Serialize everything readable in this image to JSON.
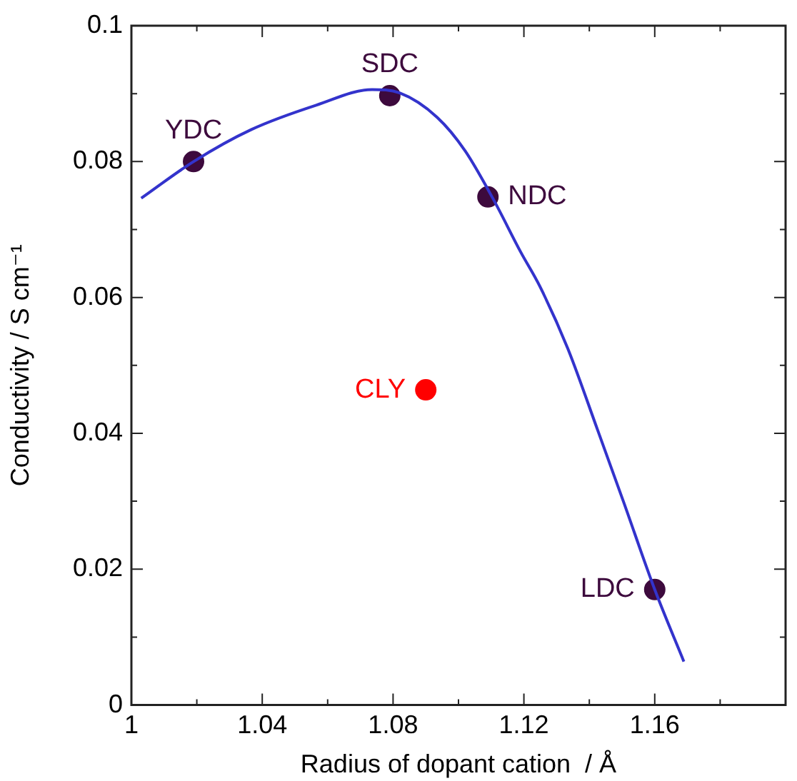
{
  "chart_data": {
    "type": "scatter",
    "xlabel": "Radius of dopant cation  / Å",
    "ylabel": "Conductivity / S cm⁻¹",
    "xlim": [
      1,
      1.2
    ],
    "ylim": [
      0,
      0.1
    ],
    "xticks": [
      1,
      {
        "value": 1.02,
        "label": null
      },
      1.04,
      {
        "value": 1.06,
        "label": null
      },
      1.08,
      {
        "value": 1.1,
        "label": null
      },
      1.12,
      {
        "value": 1.14,
        "label": null
      },
      1.16,
      {
        "value": 1.18,
        "label": null
      },
      {
        "value": 1.2,
        "label": null
      }
    ],
    "yticks": [
      0,
      {
        "value": 0.01,
        "label": null
      },
      0.02,
      {
        "value": 0.03,
        "label": null
      },
      0.04,
      {
        "value": 0.05,
        "label": null
      },
      0.06,
      {
        "value": 0.07,
        "label": null
      },
      0.08,
      {
        "value": 0.09,
        "label": null
      },
      0.1
    ],
    "grid": false,
    "legend": false,
    "marker": "circle",
    "series": [
      {
        "type": "line",
        "marker": "none",
        "color": "#3333cc",
        "x": [
          1.003,
          1.019,
          1.0366,
          1.0565,
          1.0736,
          1.082,
          1.0935,
          1.102,
          1.1106,
          1.119,
          1.1248,
          1.1334,
          1.1426,
          1.1504,
          1.16,
          1.1689
        ],
        "values": [
          0.0746,
          0.08,
          0.0847,
          0.0883,
          0.0906,
          0.0901,
          0.0865,
          0.0816,
          0.0745,
          0.0667,
          0.0617,
          0.0525,
          0.0404,
          0.03,
          0.017,
          0.0064
        ]
      },
      {
        "name": "YDC",
        "color": "#3d0a3d",
        "x": [
          1.019
        ],
        "values": [
          0.08
        ]
      },
      {
        "name": "SDC",
        "color": "#3d0a3d",
        "x": [
          1.079
        ],
        "values": [
          0.0897
        ]
      },
      {
        "name": "NDC",
        "color": "#3d0a3d",
        "x": [
          1.109
        ],
        "values": [
          0.0748
        ]
      },
      {
        "name": "CLY",
        "color": "#ff0000",
        "x": [
          1.09
        ],
        "values": [
          0.0464
        ]
      },
      {
        "name": "LDC",
        "color": "#3d0a3d",
        "x": [
          1.16
        ],
        "values": [
          0.017
        ]
      }
    ]
  }
}
